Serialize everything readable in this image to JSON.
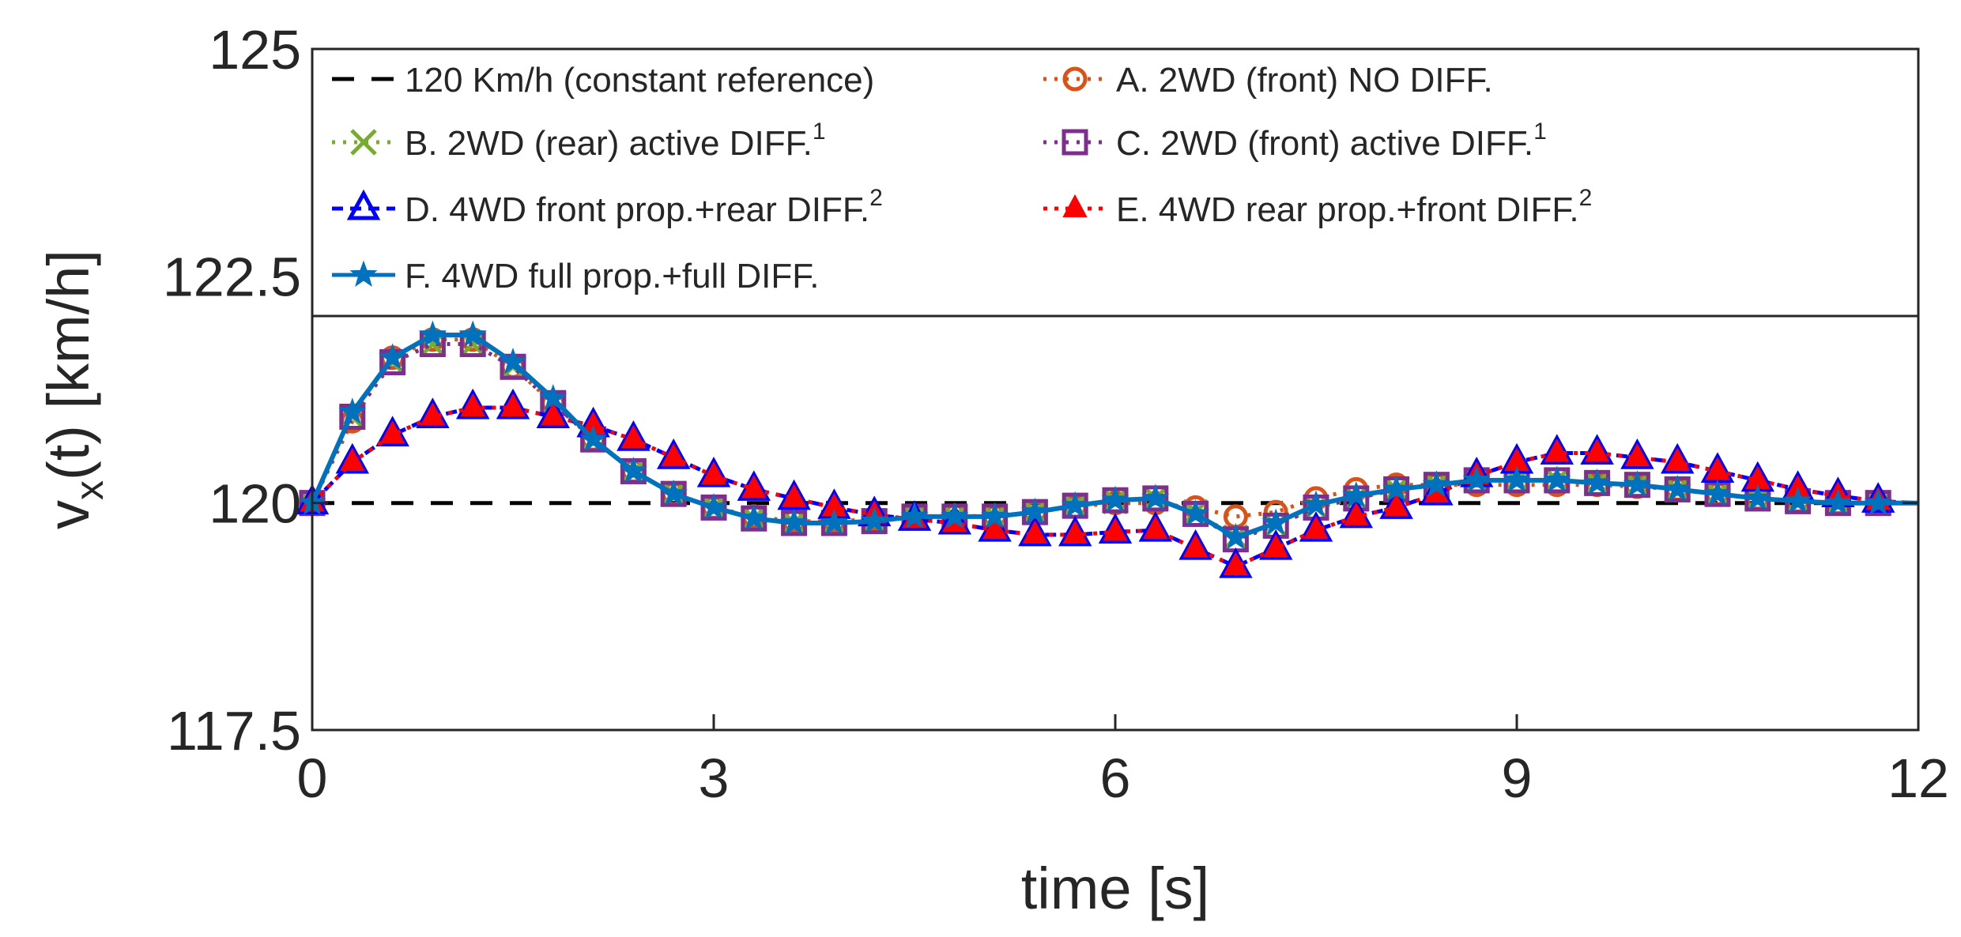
{
  "chart_data": {
    "type": "line",
    "title": "",
    "xlabel": "time [s]",
    "ylabel": "v",
    "ylabel_sub": "x",
    "ylabel_rest": "(t) [km/h]",
    "xlim": [
      0,
      12
    ],
    "ylim": [
      117.5,
      125
    ],
    "xticks": [
      0,
      3,
      6,
      9,
      12
    ],
    "yticks": [
      117.5,
      120,
      122.5,
      125
    ],
    "xtick_labels": [
      "0",
      "3",
      "6",
      "9",
      "12"
    ],
    "ytick_labels": [
      "117.5",
      "120",
      "122.5",
      "125"
    ],
    "grid": false,
    "legend_placement": "top, inside plot area (two columns)",
    "x": [
      0,
      0.3,
      0.6,
      0.9,
      1.2,
      1.5,
      1.8,
      2.1,
      2.4,
      2.7,
      3.0,
      3.3,
      3.6,
      3.9,
      4.2,
      4.5,
      4.8,
      5.1,
      5.4,
      5.7,
      6.0,
      6.3,
      6.6,
      6.9,
      7.2,
      7.5,
      7.8,
      8.1,
      8.4,
      8.7,
      9.0,
      9.3,
      9.6,
      9.9,
      10.2,
      10.5,
      10.8,
      11.1,
      11.4,
      11.7,
      12.0
    ],
    "series": [
      {
        "name": "120 Km/h (constant reference)",
        "color": "#000000",
        "dash": "28,22",
        "marker": "none",
        "values": [
          120,
          120,
          120,
          120,
          120,
          120,
          120,
          120,
          120,
          120,
          120,
          120,
          120,
          120,
          120,
          120,
          120,
          120,
          120,
          120,
          120,
          120,
          120,
          120,
          120,
          120,
          120,
          120,
          120,
          120,
          120,
          120,
          120,
          120,
          120,
          120,
          120,
          120,
          120,
          120,
          120
        ]
      },
      {
        "name": "A. 2WD (front) NO DIFF.",
        "sup": "",
        "color": "#D95319",
        "dash": "4,10",
        "marker": "circle",
        "values": [
          120,
          120.9,
          121.6,
          121.8,
          121.8,
          121.5,
          121.1,
          120.7,
          120.35,
          120.1,
          119.95,
          119.85,
          119.8,
          119.8,
          119.82,
          119.85,
          119.86,
          119.85,
          119.9,
          119.96,
          120.0,
          120.0,
          119.95,
          119.85,
          119.9,
          120.05,
          120.15,
          120.2,
          120.2,
          120.2,
          120.2,
          120.2,
          120.2,
          120.18,
          120.15,
          120.1,
          120.05,
          120.02,
          120.0,
          120.0,
          120.0
        ]
      },
      {
        "name": "B. 2WD (rear) active DIFF.",
        "sup": "1",
        "color": "#77AC30",
        "dash": "4,10",
        "marker": "x",
        "values": [
          120,
          120.95,
          121.55,
          121.75,
          121.75,
          121.5,
          121.1,
          120.7,
          120.35,
          120.1,
          119.95,
          119.83,
          119.78,
          119.78,
          119.8,
          119.85,
          119.85,
          119.85,
          119.9,
          119.97,
          120.02,
          120.05,
          119.9,
          119.62,
          119.75,
          119.95,
          120.05,
          120.15,
          120.2,
          120.25,
          120.25,
          120.25,
          120.22,
          120.2,
          120.15,
          120.1,
          120.05,
          120.02,
          120.0,
          120.0,
          120.0
        ]
      },
      {
        "name": "C. 2WD (front) active DIFF.",
        "sup": "1",
        "color": "#7E2F8E",
        "dash": "4,10",
        "marker": "square",
        "values": [
          120,
          120.95,
          121.55,
          121.75,
          121.75,
          121.5,
          121.1,
          120.7,
          120.35,
          120.1,
          119.95,
          119.83,
          119.78,
          119.78,
          119.8,
          119.85,
          119.85,
          119.85,
          119.9,
          119.97,
          120.03,
          120.05,
          119.88,
          119.6,
          119.75,
          119.95,
          120.05,
          120.15,
          120.2,
          120.25,
          120.25,
          120.25,
          120.22,
          120.2,
          120.15,
          120.1,
          120.05,
          120.02,
          120.0,
          120.0,
          120.0
        ]
      },
      {
        "name": "D. 4WD front prop.+rear DIFF.",
        "sup": "2",
        "color": "#0000FF",
        "dash": "14,9",
        "marker": "triangle-open",
        "values": [
          120,
          120.45,
          120.75,
          120.95,
          121.05,
          121.05,
          120.95,
          120.85,
          120.7,
          120.5,
          120.3,
          120.15,
          120.05,
          119.95,
          119.87,
          119.82,
          119.78,
          119.7,
          119.65,
          119.65,
          119.68,
          119.7,
          119.5,
          119.3,
          119.5,
          119.7,
          119.85,
          119.95,
          120.1,
          120.3,
          120.45,
          120.55,
          120.55,
          120.5,
          120.45,
          120.35,
          120.25,
          120.15,
          120.08,
          120.02,
          120.0
        ]
      },
      {
        "name": "E. 4WD rear prop.+front DIFF.",
        "sup": "2",
        "color": "#FF0000",
        "dash": "5,9",
        "marker": "triangle-filled",
        "values": [
          120,
          120.45,
          120.75,
          120.95,
          121.05,
          121.05,
          120.95,
          120.85,
          120.7,
          120.5,
          120.3,
          120.15,
          120.05,
          119.95,
          119.87,
          119.82,
          119.78,
          119.7,
          119.65,
          119.65,
          119.68,
          119.7,
          119.5,
          119.3,
          119.5,
          119.7,
          119.85,
          119.95,
          120.1,
          120.3,
          120.45,
          120.55,
          120.55,
          120.5,
          120.45,
          120.35,
          120.25,
          120.15,
          120.08,
          120.02,
          120.0
        ]
      },
      {
        "name": "F. 4WD full prop.+full DIFF.",
        "sup": "",
        "color": "#0072BD",
        "dash": "",
        "marker": "star",
        "values": [
          120,
          121.0,
          121.6,
          121.85,
          121.85,
          121.55,
          121.15,
          120.7,
          120.35,
          120.1,
          119.95,
          119.83,
          119.78,
          119.78,
          119.8,
          119.85,
          119.85,
          119.85,
          119.9,
          119.97,
          120.03,
          120.05,
          119.88,
          119.62,
          119.78,
          119.98,
          120.08,
          120.15,
          120.2,
          120.25,
          120.25,
          120.25,
          120.22,
          120.2,
          120.15,
          120.1,
          120.05,
          120.02,
          120.0,
          120.0,
          120.0
        ]
      }
    ]
  }
}
